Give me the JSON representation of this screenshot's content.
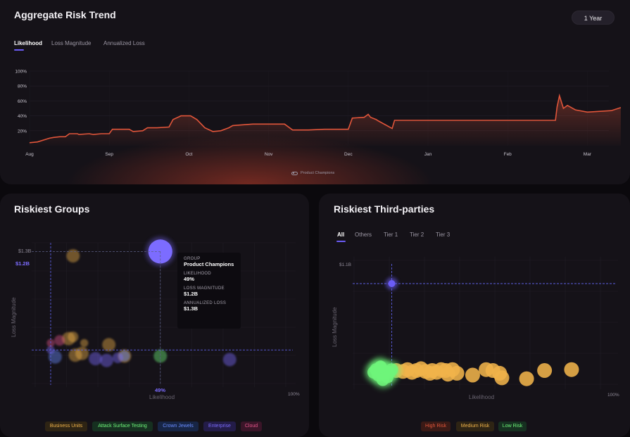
{
  "trend": {
    "title": "Aggregate Risk Trend",
    "range_button": "1 Year",
    "tabs": [
      "Likelihood",
      "Loss Magnitude",
      "Annualized Loss"
    ],
    "legend": "Product Champions"
  },
  "groups": {
    "title": "Riskiest Groups",
    "y_axis_label": "Loss Magnitude",
    "x_axis_label": "Likelihood",
    "y_top_tick": "$1.3B",
    "y_marker": "$1.2B",
    "x_marker": "49%",
    "x_end_tick": "100%",
    "tooltip": {
      "group_key": "GROUP",
      "group_val": "Product Champions",
      "likelihood_key": "LIKELIHOOD",
      "likelihood_val": "49%",
      "loss_key": "LOSS MAGNITUDE",
      "loss_val": "$1.2B",
      "annual_key": "ANNUALIZED LOSS",
      "annual_val": "$1.3B"
    },
    "legend": [
      "Business Units",
      "Attack Surface Testing",
      "Crown Jewels",
      "Enterprise",
      "Cloud"
    ]
  },
  "third_parties": {
    "title": "Riskiest Third-parties",
    "tabs": [
      "All",
      "Others",
      "Tier 1",
      "Tier 2",
      "Tier 3"
    ],
    "y_axis_label": "Loss Magnitude",
    "x_axis_label": "Likelihood",
    "y_top_tick": "$1.1B",
    "x_end_tick": "100%",
    "legend": [
      "High Risk",
      "Medium Risk",
      "Low Risk"
    ]
  },
  "colors": {
    "accent": "#6b5cf6",
    "line": "#e0553a",
    "orange": "#f0b34a",
    "green": "#6ef57a",
    "purple": "#7c6cff"
  },
  "chart_data": [
    {
      "type": "area",
      "title": "Aggregate Risk Trend",
      "series_label": "Product Champions",
      "y_ticks": [
        "20%",
        "40%",
        "60%",
        "80%",
        "100%"
      ],
      "ylim": [
        0,
        100
      ],
      "x_ticks": [
        "Aug",
        "Sep",
        "Oct",
        "Nov",
        "Dec",
        "Jan",
        "Feb",
        "Mar"
      ],
      "x": [
        0,
        0.1,
        0.25,
        0.3,
        0.38,
        0.45,
        0.5,
        0.6,
        0.62,
        0.75,
        0.8,
        0.9,
        1.0,
        1.04,
        1.25,
        1.3,
        1.42,
        1.48,
        1.6,
        1.75,
        1.8,
        1.9,
        2.0,
        2.02,
        2.1,
        2.2,
        2.3,
        2.4,
        2.5,
        2.55,
        2.8,
        2.9,
        3.0,
        3.2,
        3.3,
        3.45,
        3.5,
        3.7,
        4.0,
        4.05,
        4.2,
        4.25,
        4.28,
        4.35,
        4.38,
        4.55,
        4.58,
        5.0,
        5.5,
        6.0,
        6.6,
        6.62,
        6.65,
        6.7,
        6.75,
        6.85,
        7.0,
        7.3,
        7.42
      ],
      "y": [
        4,
        5,
        10,
        11,
        12,
        12,
        16,
        16,
        15,
        16,
        15,
        16,
        16,
        22,
        22,
        19,
        20,
        24,
        24,
        25,
        35,
        40,
        40,
        40,
        35,
        24,
        19,
        20,
        24,
        27,
        29,
        29,
        29,
        29,
        21,
        21,
        21,
        22,
        22,
        37,
        38,
        42,
        38,
        35,
        33,
        23,
        34,
        34,
        34,
        34,
        34,
        52,
        67,
        50,
        54,
        48,
        45,
        47,
        51
      ]
    },
    {
      "type": "scatter",
      "title": "Riskiest Groups",
      "xlabel": "Likelihood",
      "ylabel": "Loss Magnitude",
      "xlim": [
        0,
        100
      ],
      "ylim": [
        0,
        1.3
      ],
      "series": [
        {
          "name": "Business Units",
          "color": "#f0b34a",
          "points": [
            [
              10,
              1.15,
              5
            ],
            [
              8,
              0.2,
              5
            ],
            [
              26,
              0.13,
              5
            ],
            [
              10,
              0.22,
              4
            ],
            [
              11,
              0.01,
              5
            ],
            [
              14,
              0.03,
              5
            ],
            [
              33,
              0.0,
              5
            ],
            [
              15,
              0.15,
              3
            ]
          ]
        },
        {
          "name": "Attack Surface Testing",
          "color": "#6ef57a",
          "points": [
            [
              49,
              0.0,
              5
            ]
          ]
        },
        {
          "name": "Crown Jewels",
          "color": "#6a8cff",
          "points": [
            [
              2,
              -0.01,
              5
            ],
            [
              33,
              0.0,
              4
            ]
          ]
        },
        {
          "name": "Enterprise",
          "color": "#7c6cff",
          "points": [
            [
              49,
              1.2,
              9
            ],
            [
              0,
              0.07,
              3
            ],
            [
              25,
              -0.05,
              5
            ],
            [
              20,
              -0.03,
              5
            ],
            [
              80,
              -0.04,
              5
            ],
            [
              30,
              -0.02,
              4
            ]
          ]
        },
        {
          "name": "Cloud",
          "color": "#e2558a",
          "points": [
            [
              4,
              0.18,
              4
            ],
            [
              0,
              0.15,
              3
            ]
          ]
        }
      ]
    },
    {
      "type": "scatter",
      "title": "Riskiest Third-parties",
      "xlabel": "Likelihood",
      "ylabel": "Loss Magnitude",
      "xlim": [
        0,
        100
      ],
      "ylim": [
        0,
        1.1
      ],
      "series": [
        {
          "name": "High Risk",
          "color": "#e0553a",
          "points": []
        },
        {
          "name": "Medium Risk",
          "color": "#f0b34a",
          "points": [
            [
              10,
              0.05
            ],
            [
              13,
              0.04
            ],
            [
              15,
              0.06
            ],
            [
              17,
              0.03
            ],
            [
              19,
              0.05
            ],
            [
              21,
              0.07
            ],
            [
              23,
              0.04
            ],
            [
              25,
              0.02
            ],
            [
              26,
              0.05
            ],
            [
              28,
              0.03
            ],
            [
              30,
              0.06
            ],
            [
              32,
              0.05
            ],
            [
              33,
              0.01
            ],
            [
              35,
              0.06
            ],
            [
              37,
              0.02
            ],
            [
              44,
              0.0
            ],
            [
              50,
              0.06
            ],
            [
              53,
              0.05
            ],
            [
              56,
              0.02
            ],
            [
              57,
              -0.03
            ],
            [
              68,
              -0.04
            ],
            [
              76,
              0.05
            ],
            [
              88,
              0.06
            ]
          ]
        },
        {
          "name": "Low Risk",
          "color": "#6ef57a",
          "points": [
            [
              0,
              0.03
            ],
            [
              1,
              0.06
            ],
            [
              3,
              0.08
            ],
            [
              4,
              0.02
            ],
            [
              5,
              0.04
            ],
            [
              6,
              -0.02
            ],
            [
              2,
              0.0
            ],
            [
              4,
              -0.05
            ],
            [
              7,
              0.03
            ],
            [
              8,
              0.06
            ],
            [
              3,
              0.09
            ]
          ]
        },
        {
          "name": "Selected",
          "color": "#6b5cf6",
          "points": [
            [
              8,
              1.0
            ]
          ]
        }
      ]
    }
  ]
}
